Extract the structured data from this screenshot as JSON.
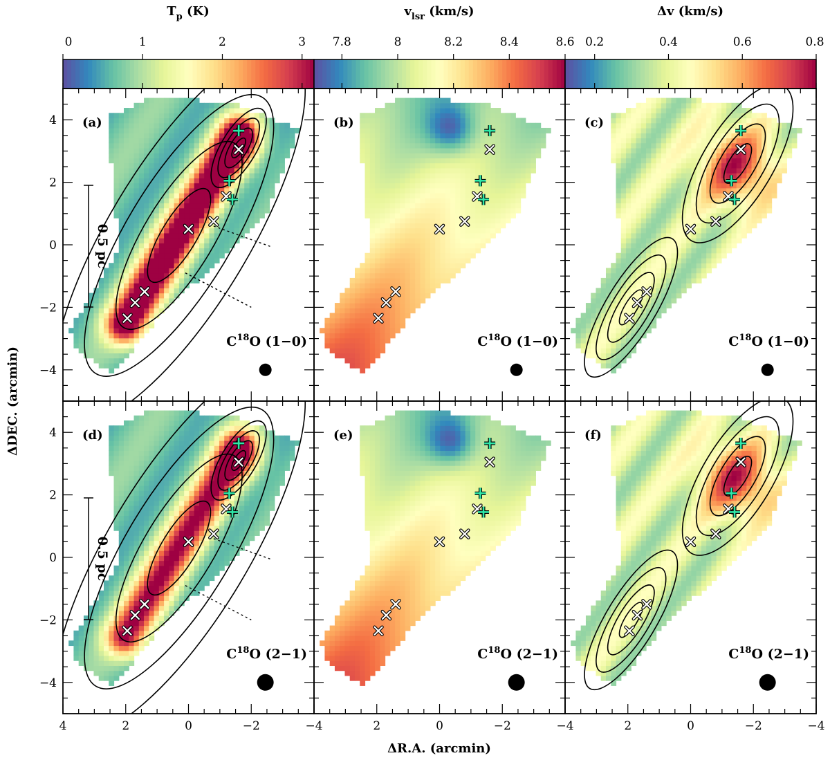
{
  "colorbars": [
    {
      "title": "T",
      "title_sub": "p",
      "title_unit": " (K)",
      "ticks": [
        "0",
        "1",
        "2",
        "3"
      ],
      "vmin": 0,
      "vmax": 3.15
    },
    {
      "title": "v",
      "title_sub": "lsr",
      "title_unit": " (km/s)",
      "ticks": [
        "7.8",
        "8",
        "8.2",
        "8.4",
        "8.6"
      ],
      "vmin": 7.7,
      "vmax": 8.6
    },
    {
      "title": "Δv",
      "title_sub": "",
      "title_unit": " (km/s)",
      "ticks": [
        "0.2",
        "0.4",
        "0.6",
        "0.8"
      ],
      "vmin": 0.12,
      "vmax": 0.8
    }
  ],
  "colormap": [
    "#5e4fa2",
    "#3288bd",
    "#66c2a5",
    "#abdda4",
    "#e6f598",
    "#ffffbf",
    "#fee08b",
    "#fdae61",
    "#f46d43",
    "#d53e4f",
    "#9e0142"
  ],
  "axes": {
    "xlabel": "ΔR.A. (arcmin)",
    "ylabel": "ΔDEC. (arcmin)",
    "xticks": [
      "4",
      "2",
      "0",
      "−2",
      "−4"
    ],
    "yticks": [
      "4",
      "2",
      "0",
      "−2",
      "−4"
    ]
  },
  "scalebar_label": "0.5 pc",
  "panels": [
    {
      "letter": "(a)",
      "line": "C",
      "line_sup": "18",
      "line_rest": "O (1−0)"
    },
    {
      "letter": "(b)",
      "line": "C",
      "line_sup": "18",
      "line_rest": "O (1−0)"
    },
    {
      "letter": "(c)",
      "line": "C",
      "line_sup": "18",
      "line_rest": "O (1−0)"
    },
    {
      "letter": "(d)",
      "line": "C",
      "line_sup": "18",
      "line_rest": "O (2−1)"
    },
    {
      "letter": "(e)",
      "line": "C",
      "line_sup": "18",
      "line_rest": "O (2−1)"
    },
    {
      "letter": "(f)",
      "line": "C",
      "line_sup": "18",
      "line_rest": "O (2−1)"
    }
  ],
  "cores_x": [
    [
      -1.6,
      3.05
    ],
    [
      -1.2,
      1.55
    ],
    [
      -0.8,
      0.75
    ],
    [
      0.0,
      0.5
    ],
    [
      1.4,
      -1.5
    ],
    [
      1.7,
      -1.85
    ],
    [
      1.95,
      -2.35
    ]
  ],
  "sources_plus": [
    [
      -1.6,
      3.65
    ],
    [
      -1.3,
      2.05
    ],
    [
      -1.4,
      1.45
    ]
  ],
  "colors": {
    "plus": "#2ee8a8",
    "x_marker": "#ffffff",
    "contour": "#000000"
  }
}
